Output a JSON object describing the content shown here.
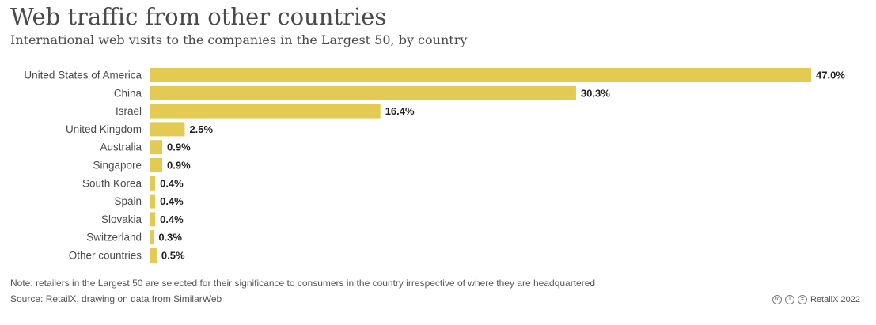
{
  "header": {
    "title": "Web traffic from other countries",
    "subtitle": "International web visits to the companies in the Largest 50, by country"
  },
  "chart_data": {
    "type": "bar",
    "orientation": "horizontal",
    "title": "Web traffic from other countries",
    "subtitle": "International web visits to the companies in the Largest 50, by country",
    "categories": [
      "United States of America",
      "China",
      "Israel",
      "United Kingdom",
      "Australia",
      "Singapore",
      "South Korea",
      "Spain",
      "Slovakia",
      "Switzerland",
      "Other countries"
    ],
    "values": [
      47.0,
      30.3,
      16.4,
      2.5,
      0.9,
      0.9,
      0.4,
      0.4,
      0.4,
      0.3,
      0.5
    ],
    "value_labels": [
      "47.0%",
      "30.3%",
      "16.4%",
      "2.5%",
      "0.9%",
      "0.9%",
      "0.4%",
      "0.4%",
      "0.4%",
      "0.3%",
      "0.5%"
    ],
    "xlim": [
      0,
      47
    ],
    "grid": false,
    "bar_color": "#e3ca52"
  },
  "footer": {
    "note": "Note: retailers in the Largest 50 are selected for their significance to consumers in the country irrespective of where they are headquartered",
    "source": "Source: RetailX, drawing on data from SimilarWeb",
    "credit": "RetailX 2022",
    "license_icons": [
      "cc-icon",
      "by-icon",
      "nd-icon"
    ]
  }
}
